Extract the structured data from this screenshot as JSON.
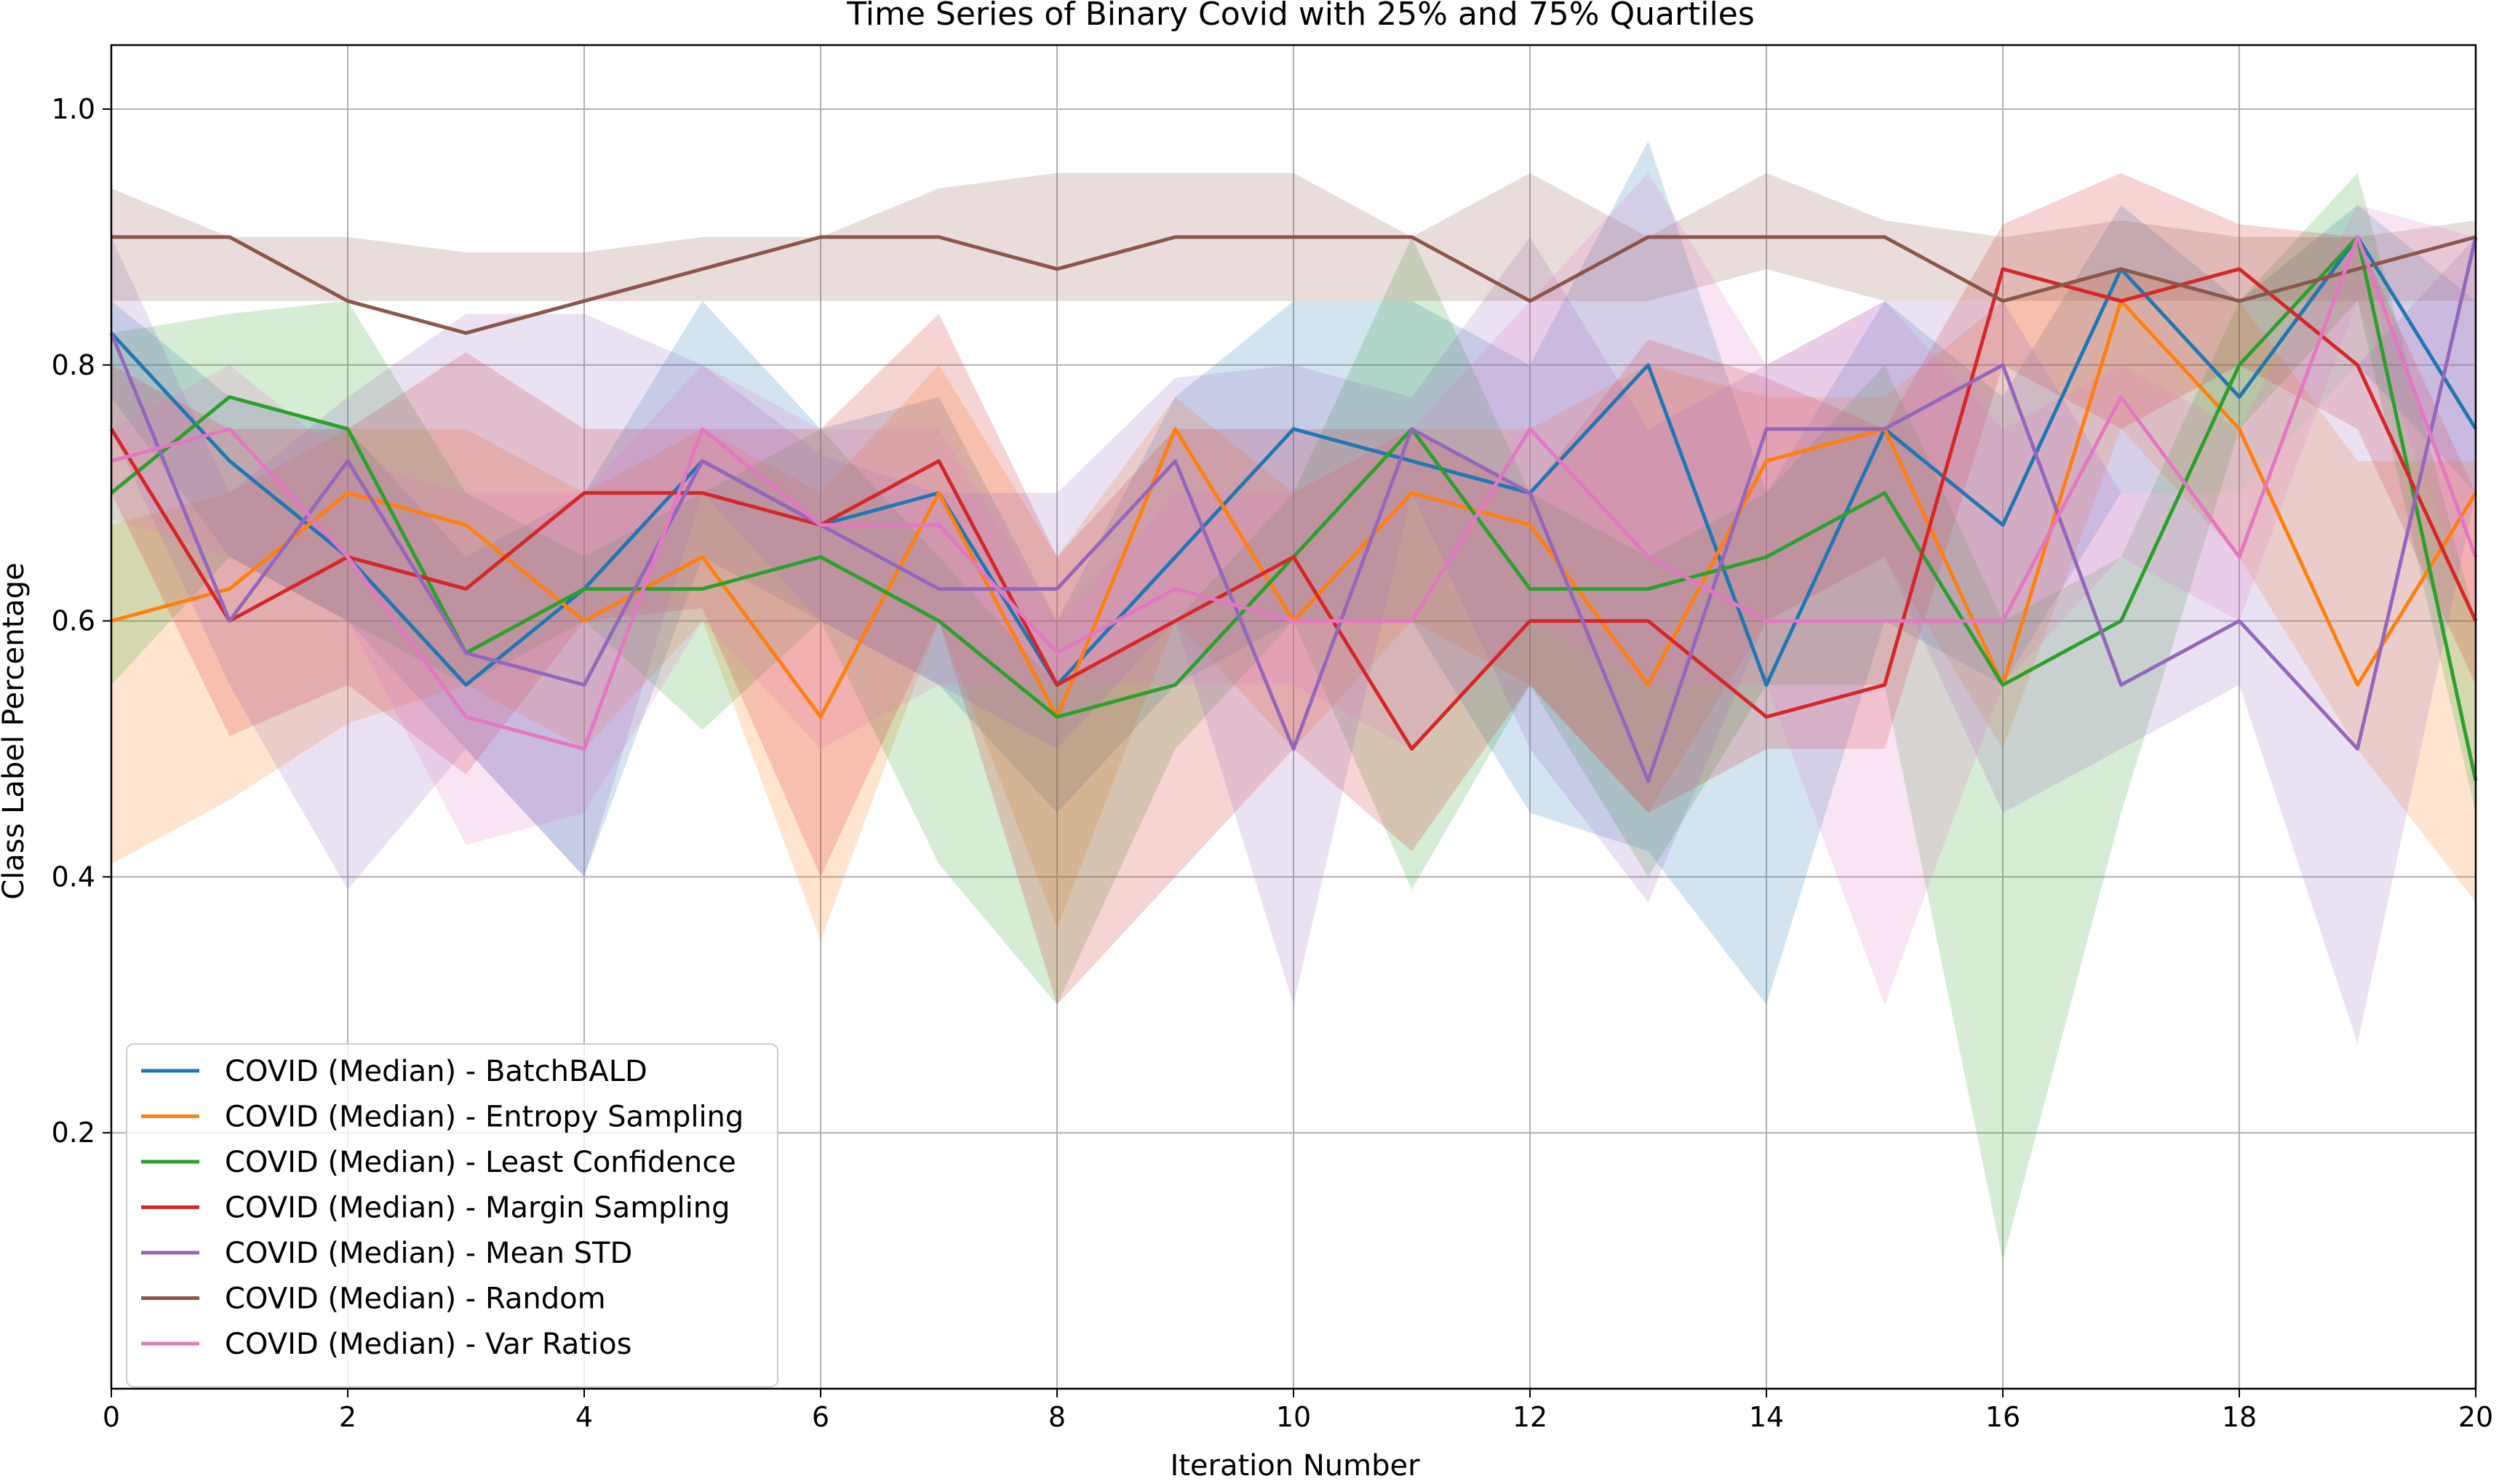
{
  "chart_data": {
    "type": "line",
    "title": "Time Series of Binary Covid with 25% and 75% Quartiles",
    "xlabel": "Iteration Number",
    "ylabel": "Class Label Percentage",
    "xlim": [
      0,
      20
    ],
    "ylim": [
      0.0,
      1.05
    ],
    "xticks": [
      0,
      2,
      4,
      6,
      8,
      10,
      12,
      14,
      16,
      18,
      20
    ],
    "yticks": [
      0.2,
      0.4,
      0.6,
      0.8,
      1.0
    ],
    "grid": true,
    "legend_position": "lower-left",
    "x": [
      0,
      1,
      2,
      3,
      4,
      5,
      6,
      7,
      8,
      9,
      10,
      11,
      12,
      13,
      14,
      15,
      16,
      17,
      18,
      19,
      20
    ],
    "series": [
      {
        "name": "COVID (Median) - BatchBALD",
        "color": "#1f77b4",
        "values": [
          0.825,
          0.725,
          0.65,
          0.55,
          0.625,
          0.725,
          0.675,
          0.7,
          0.55,
          0.65,
          0.75,
          0.725,
          0.7,
          0.8,
          0.55,
          0.75,
          0.675,
          0.875,
          0.775,
          0.9,
          0.75
        ],
        "q25": [
          0.775,
          0.65,
          0.6,
          0.5,
          0.4,
          0.65,
          0.6,
          0.55,
          0.45,
          0.55,
          0.6,
          0.6,
          0.45,
          0.42,
          0.3,
          0.6,
          0.55,
          0.7,
          0.7,
          0.8,
          0.7
        ],
        "q75": [
          0.85,
          0.775,
          0.75,
          0.65,
          0.7,
          0.85,
          0.75,
          0.775,
          0.6,
          0.775,
          0.85,
          0.85,
          0.8,
          0.975,
          0.7,
          0.85,
          0.775,
          0.925,
          0.85,
          0.925,
          0.85
        ]
      },
      {
        "name": "COVID (Median) - Entropy Sampling",
        "color": "#ff7f0e",
        "values": [
          0.6,
          0.625,
          0.7,
          0.675,
          0.6,
          0.65,
          0.525,
          0.7,
          0.525,
          0.75,
          0.6,
          0.7,
          0.675,
          0.55,
          0.725,
          0.75,
          0.55,
          0.85,
          0.75,
          0.55,
          0.7
        ],
        "q25": [
          0.41,
          0.46,
          0.52,
          0.55,
          0.5,
          0.6,
          0.35,
          0.6,
          0.36,
          0.6,
          0.5,
          0.6,
          0.55,
          0.45,
          0.6,
          0.65,
          0.5,
          0.75,
          0.65,
          0.5,
          0.38
        ],
        "q75": [
          0.675,
          0.7,
          0.75,
          0.75,
          0.7,
          0.75,
          0.7,
          0.8,
          0.65,
          0.775,
          0.7,
          0.75,
          0.75,
          0.8,
          0.775,
          0.775,
          0.85,
          0.875,
          0.85,
          0.725,
          0.725
        ]
      },
      {
        "name": "COVID (Median) - Least Confidence",
        "color": "#2ca02c",
        "values": [
          0.7,
          0.775,
          0.75,
          0.575,
          0.625,
          0.625,
          0.65,
          0.6,
          0.525,
          0.55,
          0.65,
          0.75,
          0.625,
          0.625,
          0.65,
          0.7,
          0.55,
          0.6,
          0.8,
          0.9,
          0.475
        ],
        "q25": [
          0.55,
          0.65,
          0.6,
          0.55,
          0.6,
          0.515,
          0.6,
          0.41,
          0.3,
          0.5,
          0.6,
          0.39,
          0.55,
          0.4,
          0.55,
          0.55,
          0.1,
          0.45,
          0.75,
          0.85,
          0.45
        ],
        "q75": [
          0.825,
          0.84,
          0.85,
          0.7,
          0.65,
          0.7,
          0.75,
          0.65,
          0.55,
          0.6,
          0.7,
          0.9,
          0.7,
          0.65,
          0.7,
          0.8,
          0.6,
          0.65,
          0.85,
          0.95,
          0.6
        ]
      },
      {
        "name": "COVID (Median) - Margin Sampling",
        "color": "#d62728",
        "values": [
          0.75,
          0.6,
          0.65,
          0.625,
          0.7,
          0.7,
          0.675,
          0.725,
          0.55,
          0.6,
          0.65,
          0.5,
          0.6,
          0.6,
          0.525,
          0.55,
          0.875,
          0.85,
          0.875,
          0.8,
          0.6
        ],
        "q25": [
          0.7,
          0.51,
          0.55,
          0.48,
          0.6,
          0.61,
          0.4,
          0.6,
          0.3,
          0.4,
          0.5,
          0.42,
          0.55,
          0.45,
          0.5,
          0.5,
          0.8,
          0.75,
          0.8,
          0.75,
          0.55
        ],
        "q75": [
          0.8,
          0.75,
          0.75,
          0.81,
          0.75,
          0.75,
          0.75,
          0.84,
          0.65,
          0.75,
          0.75,
          0.75,
          0.7,
          0.82,
          0.79,
          0.75,
          0.91,
          0.95,
          0.91,
          0.9,
          0.7
        ]
      },
      {
        "name": "COVID (Median) - Mean STD",
        "color": "#9467bd",
        "values": [
          0.825,
          0.6,
          0.725,
          0.575,
          0.55,
          0.725,
          0.675,
          0.625,
          0.625,
          0.725,
          0.5,
          0.75,
          0.7,
          0.475,
          0.75,
          0.75,
          0.8,
          0.55,
          0.6,
          0.5,
          0.9
        ],
        "q25": [
          0.75,
          0.55,
          0.39,
          0.5,
          0.4,
          0.7,
          0.6,
          0.55,
          0.5,
          0.6,
          0.3,
          0.7,
          0.5,
          0.38,
          0.6,
          0.65,
          0.45,
          0.5,
          0.55,
          0.27,
          0.7
        ],
        "q75": [
          0.9,
          0.7,
          0.775,
          0.84,
          0.84,
          0.8,
          0.73,
          0.7,
          0.7,
          0.79,
          0.8,
          0.775,
          0.9,
          0.75,
          0.8,
          0.85,
          0.85,
          0.7,
          0.7,
          0.8,
          0.9
        ]
      },
      {
        "name": "COVID (Median) - Random",
        "color": "#8c564b",
        "values": [
          0.9,
          0.9,
          0.85,
          0.825,
          0.85,
          0.875,
          0.9,
          0.9,
          0.875,
          0.9,
          0.9,
          0.9,
          0.85,
          0.9,
          0.9,
          0.9,
          0.85,
          0.875,
          0.85,
          0.875,
          0.9
        ],
        "q25": [
          0.85,
          0.85,
          0.85,
          0.85,
          0.85,
          0.85,
          0.85,
          0.85,
          0.85,
          0.85,
          0.85,
          0.85,
          0.85,
          0.85,
          0.875,
          0.85,
          0.85,
          0.85,
          0.85,
          0.85,
          0.85
        ],
        "q75": [
          0.938,
          0.9,
          0.9,
          0.888,
          0.888,
          0.9,
          0.9,
          0.938,
          0.95,
          0.95,
          0.95,
          0.9,
          0.95,
          0.9,
          0.95,
          0.913,
          0.9,
          0.913,
          0.9,
          0.9,
          0.913
        ]
      },
      {
        "name": "COVID (Median) - Var Ratios",
        "color": "#e377c2",
        "values": [
          0.725,
          0.75,
          0.65,
          0.525,
          0.5,
          0.75,
          0.675,
          0.675,
          0.575,
          0.625,
          0.6,
          0.6,
          0.75,
          0.65,
          0.6,
          0.6,
          0.6,
          0.775,
          0.65,
          0.9,
          0.65
        ],
        "q25": [
          0.68,
          0.65,
          0.6,
          0.425,
          0.45,
          0.6,
          0.5,
          0.55,
          0.55,
          0.55,
          0.55,
          0.5,
          0.6,
          0.55,
          0.55,
          0.3,
          0.55,
          0.65,
          0.6,
          0.85,
          0.6
        ],
        "q75": [
          0.75,
          0.8,
          0.725,
          0.7,
          0.7,
          0.8,
          0.75,
          0.75,
          0.6,
          0.7,
          0.7,
          0.75,
          0.85,
          0.95,
          0.8,
          0.85,
          0.75,
          0.8,
          0.75,
          0.925,
          0.9
        ]
      }
    ]
  }
}
